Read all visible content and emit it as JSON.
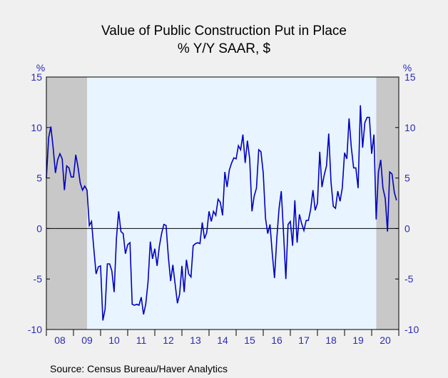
{
  "colors": {
    "background": "#f0f0f0",
    "plot_fill": "#e8f4ff",
    "recession": "#c8c8c8",
    "line": "#0000c0",
    "axis_text": "#2b2bb5",
    "zero_line": "#000000"
  },
  "chart_data": {
    "type": "line",
    "title": "Value of Public Construction Put in Place",
    "subtitle": "% Y/Y   SAAR, $",
    "ylabel_left": "%",
    "ylabel_right": "%",
    "ylim": [
      -10,
      15
    ],
    "yticks": [
      15,
      10,
      5,
      0,
      -5,
      -10
    ],
    "ytick_labels": [
      "15",
      "10",
      "5",
      "0",
      "-5",
      "-10"
    ],
    "xlim": [
      2008.0,
      2021.0
    ],
    "xtick_labels": [
      "08",
      "09",
      "10",
      "11",
      "12",
      "13",
      "14",
      "15",
      "16",
      "17",
      "18",
      "19",
      "20"
    ],
    "grid": false,
    "legend": "none",
    "source": "Source:  Census Bureau/Haver Analytics",
    "recessions": [
      [
        2008.0,
        2009.5
      ],
      [
        2020.17,
        2021.0
      ]
    ],
    "series": [
      {
        "x": [
          2008.0,
          2008.083,
          2008.167,
          2008.25,
          2008.333,
          2008.417,
          2008.5,
          2008.583,
          2008.667,
          2008.75,
          2008.833,
          2008.917,
          2009.0,
          2009.083,
          2009.167,
          2009.25,
          2009.333,
          2009.417,
          2009.5,
          2009.583,
          2009.667,
          2009.75,
          2009.833,
          2009.917,
          2010.0,
          2010.083,
          2010.167,
          2010.25,
          2010.333,
          2010.417,
          2010.5,
          2010.583,
          2010.667,
          2010.75,
          2010.833,
          2010.917,
          2011.0,
          2011.083,
          2011.167,
          2011.25,
          2011.333,
          2011.417,
          2011.5,
          2011.583,
          2011.667,
          2011.75,
          2011.833,
          2011.917,
          2012.0,
          2012.083,
          2012.167,
          2012.25,
          2012.333,
          2012.417,
          2012.5,
          2012.583,
          2012.667,
          2012.75,
          2012.833,
          2012.917,
          2013.0,
          2013.083,
          2013.167,
          2013.25,
          2013.333,
          2013.417,
          2013.5,
          2013.583,
          2013.667,
          2013.75,
          2013.833,
          2013.917,
          2014.0,
          2014.083,
          2014.167,
          2014.25,
          2014.333,
          2014.417,
          2014.5,
          2014.583,
          2014.667,
          2014.75,
          2014.833,
          2014.917,
          2015.0,
          2015.083,
          2015.167,
          2015.25,
          2015.333,
          2015.417,
          2015.5,
          2015.583,
          2015.667,
          2015.75,
          2015.833,
          2015.917,
          2016.0,
          2016.083,
          2016.167,
          2016.25,
          2016.333,
          2016.417,
          2016.5,
          2016.583,
          2016.667,
          2016.75,
          2016.833,
          2016.917,
          2017.0,
          2017.083,
          2017.167,
          2017.25,
          2017.333,
          2017.417,
          2017.5,
          2017.583,
          2017.667,
          2017.75,
          2017.833,
          2017.917,
          2018.0,
          2018.083,
          2018.167,
          2018.25,
          2018.333,
          2018.417,
          2018.5,
          2018.583,
          2018.667,
          2018.75,
          2018.833,
          2018.917,
          2019.0,
          2019.083,
          2019.167,
          2019.25,
          2019.333,
          2019.417,
          2019.5,
          2019.583,
          2019.667,
          2019.75,
          2019.833,
          2019.917,
          2020.0,
          2020.083,
          2020.167,
          2020.25,
          2020.333,
          2020.417,
          2020.5,
          2020.583,
          2020.667,
          2020.75,
          2020.833,
          2020.917
        ],
        "values": [
          5.0,
          9.0,
          10.1,
          8.0,
          5.5,
          6.8,
          7.4,
          6.9,
          3.8,
          6.2,
          6.0,
          5.1,
          5.1,
          7.3,
          6.1,
          4.5,
          3.8,
          4.2,
          3.8,
          0.3,
          0.7,
          -2.0,
          -4.5,
          -3.8,
          -3.7,
          -9.1,
          -8.0,
          -3.5,
          -3.5,
          -4.2,
          -6.3,
          -1.0,
          1.7,
          -0.3,
          -0.5,
          -2.5,
          -1.6,
          -1.4,
          -7.5,
          -7.6,
          -7.5,
          -7.6,
          -6.8,
          -8.5,
          -7.5,
          -5.3,
          -1.3,
          -3.0,
          -2.0,
          -3.7,
          -1.8,
          -0.5,
          0.4,
          0.3,
          -2.8,
          -5.2,
          -3.6,
          -5.5,
          -7.4,
          -6.5,
          -3.7,
          -6.3,
          -3.1,
          -4.5,
          -4.8,
          -1.7,
          -1.5,
          -1.4,
          -1.5,
          0.6,
          -1.0,
          -0.4,
          1.7,
          0.7,
          1.7,
          1.3,
          2.9,
          2.6,
          1.3,
          5.6,
          4.1,
          5.8,
          6.5,
          7.0,
          6.9,
          8.2,
          7.8,
          9.3,
          6.5,
          8.7,
          6.9,
          1.7,
          3.2,
          4.0,
          7.8,
          7.6,
          5.5,
          1.0,
          -0.5,
          0.4,
          -2.5,
          -4.9,
          -1.0,
          2.0,
          3.7,
          -0.5,
          -5.0,
          0.4,
          0.7,
          -1.7,
          2.8,
          -1.4,
          1.4,
          0.5,
          -0.2,
          0.8,
          0.8,
          1.9,
          3.8,
          1.8,
          2.5,
          7.6,
          4.1,
          5.3,
          6.2,
          9.4,
          4.6,
          2.2,
          2.0,
          3.7,
          2.7,
          4.0,
          7.5,
          6.9,
          10.9,
          8.0,
          6.0,
          6.0,
          4.0,
          12.2,
          8.0,
          10.5,
          11.0,
          11.0,
          7.4,
          9.3,
          0.9,
          5.6,
          6.8,
          4.0,
          3.0,
          -0.3,
          5.6,
          5.4,
          3.6,
          2.8
        ]
      }
    ]
  }
}
